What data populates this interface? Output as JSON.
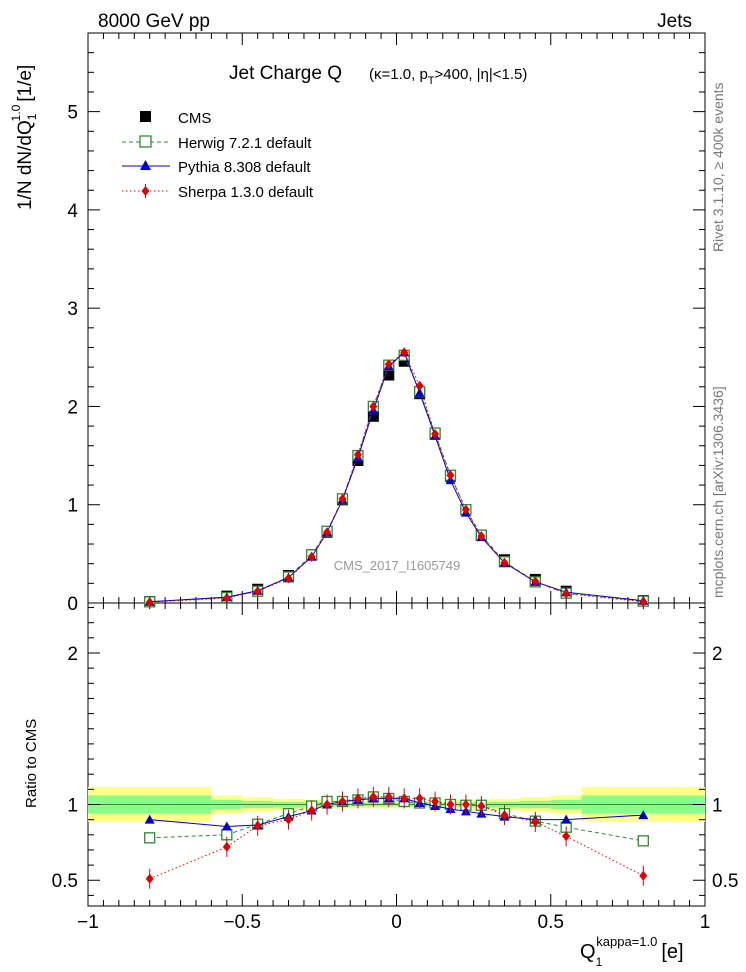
{
  "header": {
    "left": "8000 GeV pp",
    "right": "Jets"
  },
  "side_labels": {
    "rivet": "Rivet 3.1.10, ≥ 400k events",
    "mcplots": "mcplots.cern.ch [arXiv:1306.3436]"
  },
  "watermark": "CMS_2017_I1605749",
  "chart_data": [
    {
      "type": "scatter",
      "title_main": "Jet Charge Q",
      "title_sub": "(κ=1.0, p",
      "title_sub_sub": "T",
      "title_sub_tail": ">400, |η|<1.5)",
      "ylabel": "1/N dN/dQ",
      "ylabel_sub": "1",
      "ylabel_sup": "1.0",
      "ylabel_unit": "[1/e]",
      "xlim": [
        -1.0,
        1.0
      ],
      "ylim": [
        0,
        5.8
      ],
      "yticks": [
        "0",
        "1",
        "2",
        "3",
        "4",
        "5"
      ],
      "x": [
        -0.8,
        -0.55,
        -0.45,
        -0.35,
        -0.275,
        -0.225,
        -0.175,
        -0.125,
        -0.075,
        -0.025,
        0.025,
        0.075,
        0.125,
        0.175,
        0.225,
        0.275,
        0.35,
        0.45,
        0.55,
        0.8
      ],
      "series": [
        {
          "name": "CMS",
          "color": "#000000",
          "marker": "square-filled",
          "values": [
            0.015,
            0.07,
            0.14,
            0.28,
            0.49,
            0.72,
            1.05,
            1.45,
            1.9,
            2.32,
            2.46,
            2.13,
            1.72,
            1.29,
            0.95,
            0.69,
            0.44,
            0.24,
            0.12,
            0.025
          ]
        },
        {
          "name": "Herwig 7.2.1 default",
          "color": "#2e8b2e",
          "marker": "square-open",
          "dash": "4,3",
          "values": [
            0.012,
            0.056,
            0.12,
            0.265,
            0.49,
            0.73,
            1.06,
            1.5,
            2.0,
            2.42,
            2.52,
            2.15,
            1.73,
            1.3,
            0.95,
            0.69,
            0.42,
            0.215,
            0.1,
            0.019
          ]
        },
        {
          "name": "Pythia 8.308 default",
          "color": "#0000cc",
          "marker": "triangle",
          "values": [
            0.013,
            0.06,
            0.125,
            0.26,
            0.47,
            0.72,
            1.05,
            1.48,
            1.96,
            2.41,
            2.55,
            2.14,
            1.7,
            1.25,
            0.92,
            0.67,
            0.41,
            0.215,
            0.11,
            0.023
          ]
        },
        {
          "name": "Sherpa 1.3.0 default",
          "color": "#e00000",
          "marker": "diamond",
          "dash": "1.5,2.5",
          "values": [
            0.008,
            0.05,
            0.12,
            0.25,
            0.47,
            0.72,
            1.06,
            1.51,
            2.0,
            2.43,
            2.55,
            2.21,
            1.72,
            1.3,
            0.95,
            0.68,
            0.41,
            0.22,
            0.095,
            0.013
          ]
        }
      ]
    },
    {
      "type": "scatter",
      "ylabel": "Ratio to CMS",
      "xlabel": "Q",
      "xlabel_sub": "1",
      "xlabel_sup": "kappa=1.0",
      "xlabel_unit": "[e]",
      "xlim": [
        -1.0,
        1.0
      ],
      "ylim": [
        0.33,
        2.33
      ],
      "xticks": [
        "−1",
        "−0.5",
        "0",
        "0.5",
        "1"
      ],
      "yticks": [
        "0.5",
        "1",
        "2"
      ],
      "x": [
        -0.8,
        -0.55,
        -0.45,
        -0.35,
        -0.275,
        -0.225,
        -0.175,
        -0.125,
        -0.075,
        -0.025,
        0.025,
        0.075,
        0.125,
        0.175,
        0.225,
        0.275,
        0.35,
        0.45,
        0.55,
        0.8
      ],
      "bands": {
        "yellow_color": "#ffff88",
        "green_color": "#88ff88",
        "edges": [
          -1.0,
          -0.6,
          -0.5,
          -0.4,
          -0.3,
          -0.25,
          -0.2,
          -0.15,
          -0.1,
          -0.05,
          0.0,
          0.05,
          0.1,
          0.15,
          0.2,
          0.25,
          0.3,
          0.4,
          0.5,
          0.6,
          1.0
        ],
        "yellow_halfwidth": [
          0.115,
          0.06,
          0.048,
          0.036,
          0.03,
          0.028,
          0.026,
          0.024,
          0.024,
          0.024,
          0.024,
          0.024,
          0.024,
          0.026,
          0.028,
          0.03,
          0.036,
          0.048,
          0.06,
          0.115
        ],
        "green_halfwidth": [
          0.06,
          0.03,
          0.024,
          0.018,
          0.015,
          0.014,
          0.013,
          0.012,
          0.012,
          0.012,
          0.012,
          0.012,
          0.012,
          0.013,
          0.014,
          0.015,
          0.018,
          0.024,
          0.03,
          0.06
        ]
      },
      "series": [
        {
          "name": "Herwig 7.2.1 default",
          "color": "#2e8b2e",
          "marker": "square-open",
          "dash": "4,3",
          "values": [
            0.78,
            0.8,
            0.87,
            0.94,
            0.99,
            1.02,
            1.02,
            1.03,
            1.05,
            1.04,
            1.02,
            1.01,
            1.01,
            1.0,
            0.995,
            0.995,
            0.94,
            0.89,
            0.85,
            0.76
          ]
        },
        {
          "name": "Pythia 8.308 default",
          "color": "#0000cc",
          "marker": "triangle",
          "values": [
            0.9,
            0.855,
            0.865,
            0.92,
            0.96,
            1.0,
            1.02,
            1.03,
            1.04,
            1.04,
            1.04,
            1.01,
            0.99,
            0.97,
            0.955,
            0.94,
            0.92,
            0.9,
            0.9,
            0.93
          ]
        },
        {
          "name": "Sherpa 1.3.0 default",
          "color": "#e00000",
          "marker": "diamond",
          "dash": "1.5,2.5",
          "values": [
            0.51,
            0.72,
            0.86,
            0.9,
            0.96,
            1.0,
            1.02,
            1.04,
            1.05,
            1.05,
            1.04,
            1.04,
            1.02,
            1.0,
            1.0,
            0.99,
            0.93,
            0.885,
            0.79,
            0.53
          ]
        }
      ]
    }
  ]
}
